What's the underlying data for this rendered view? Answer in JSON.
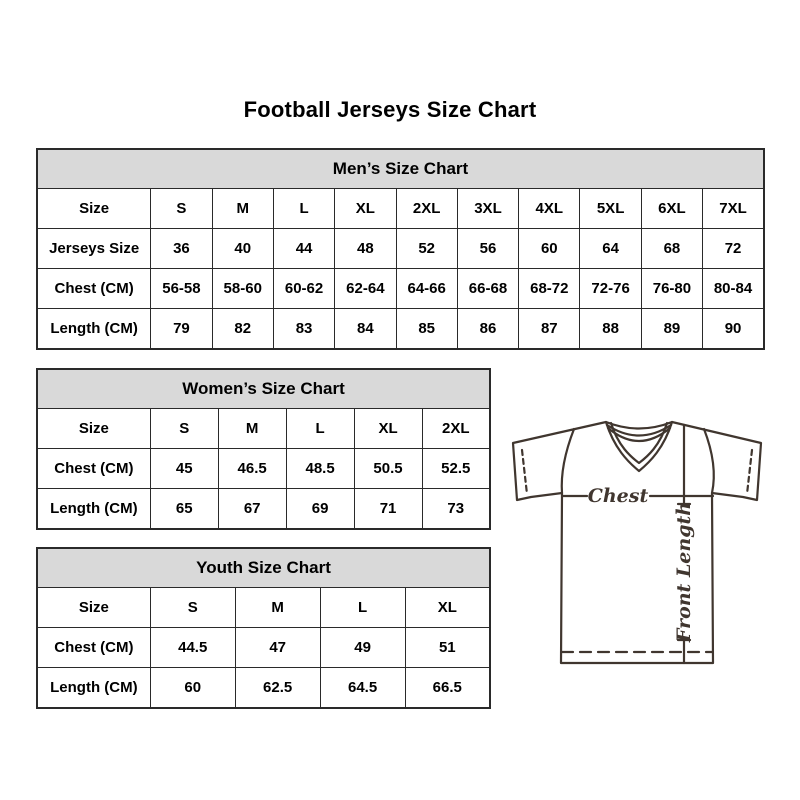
{
  "page": {
    "title": "Football Jerseys Size Chart"
  },
  "colors": {
    "header_fill": "#d9d9d9",
    "border": "#2a2a2a",
    "text": "#000000",
    "diagram_line": "#40362f",
    "background": "#ffffff"
  },
  "tables": [
    {
      "id": "mens",
      "title": "Men’s Size Chart",
      "rows": [
        [
          "Size",
          "S",
          "M",
          "L",
          "XL",
          "2XL",
          "3XL",
          "4XL",
          "5XL",
          "6XL",
          "7XL"
        ],
        [
          "Jerseys Size",
          "36",
          "40",
          "44",
          "48",
          "52",
          "56",
          "60",
          "64",
          "68",
          "72"
        ],
        [
          "Chest (CM)",
          "56-58",
          "58-60",
          "60-62",
          "62-64",
          "64-66",
          "66-68",
          "68-72",
          "72-76",
          "76-80",
          "80-84"
        ],
        [
          "Length (CM)",
          "79",
          "82",
          "83",
          "84",
          "85",
          "86",
          "87",
          "88",
          "89",
          "90"
        ]
      ]
    },
    {
      "id": "womens",
      "title": "Women’s Size Chart",
      "rows": [
        [
          "Size",
          "S",
          "M",
          "L",
          "XL",
          "2XL"
        ],
        [
          "Chest (CM)",
          "45",
          "46.5",
          "48.5",
          "50.5",
          "52.5"
        ],
        [
          "Length (CM)",
          "65",
          "67",
          "69",
          "71",
          "73"
        ]
      ]
    },
    {
      "id": "youth",
      "title": "Youth Size Chart",
      "rows": [
        [
          "Size",
          "S",
          "M",
          "L",
          "XL"
        ],
        [
          "Chest (CM)",
          "44.5",
          "47",
          "49",
          "51"
        ],
        [
          "Length (CM)",
          "60",
          "62.5",
          "64.5",
          "66.5"
        ]
      ]
    }
  ],
  "diagram": {
    "chest_label": "Chest",
    "front_length_label": "Front Length"
  }
}
